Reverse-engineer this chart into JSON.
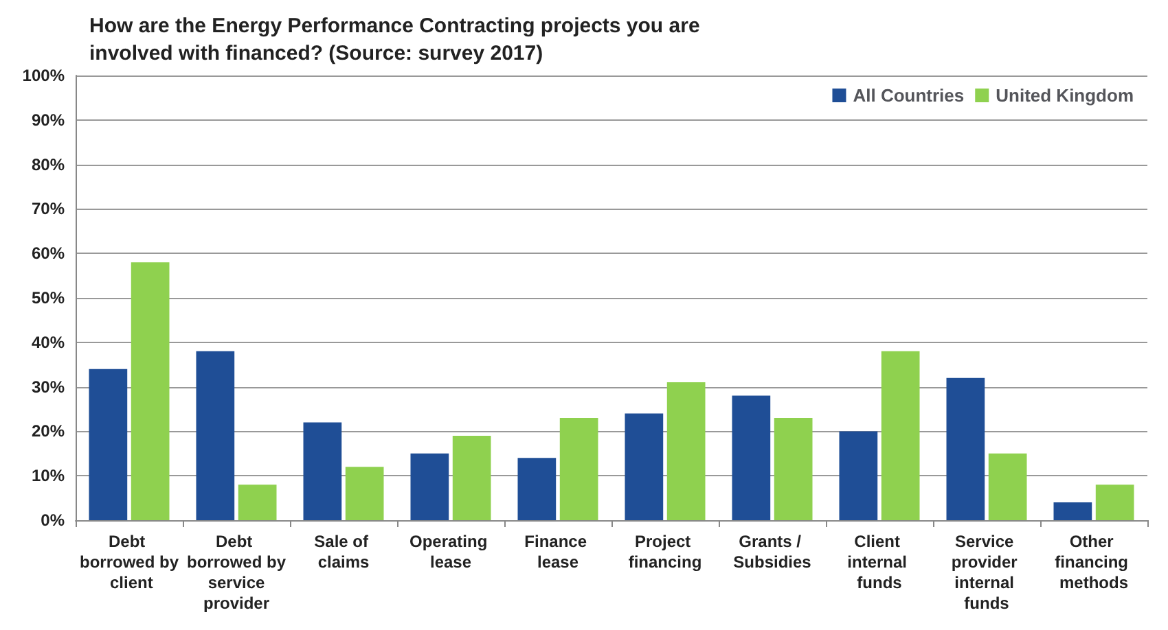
{
  "chart_data": {
    "type": "bar",
    "title": "How are the Energy Performance Contracting projects you are involved with financed? (Source: survey 2017)",
    "categories": [
      "Debt borrowed by client",
      "Debt borrowed by service provider",
      "Sale of claims",
      "Operating lease",
      "Finance lease",
      "Project financing",
      "Grants / Subsidies",
      "Client internal funds",
      "Service provider internal funds",
      "Other financing methods"
    ],
    "series": [
      {
        "name": "All Countries",
        "color": "#1f4e96",
        "values": [
          34,
          38,
          22,
          15,
          14,
          24,
          28,
          20,
          32,
          4
        ]
      },
      {
        "name": "United Kingdom",
        "color": "#8fd14f",
        "values": [
          58,
          8,
          12,
          19,
          23,
          31,
          23,
          38,
          15,
          8
        ]
      }
    ],
    "ylim": [
      0,
      100
    ],
    "yticks": [
      {
        "value": 0,
        "label": "0%"
      },
      {
        "value": 10,
        "label": "10%"
      },
      {
        "value": 20,
        "label": "20%"
      },
      {
        "value": 30,
        "label": "30%"
      },
      {
        "value": 40,
        "label": "40%"
      },
      {
        "value": 50,
        "label": "50%"
      },
      {
        "value": 60,
        "label": "60%"
      },
      {
        "value": 70,
        "label": "70%"
      },
      {
        "value": 80,
        "label": "80%"
      },
      {
        "value": 90,
        "label": "90%"
      },
      {
        "value": 100,
        "label": "100%"
      }
    ],
    "grid": "y",
    "legend": "top right"
  }
}
